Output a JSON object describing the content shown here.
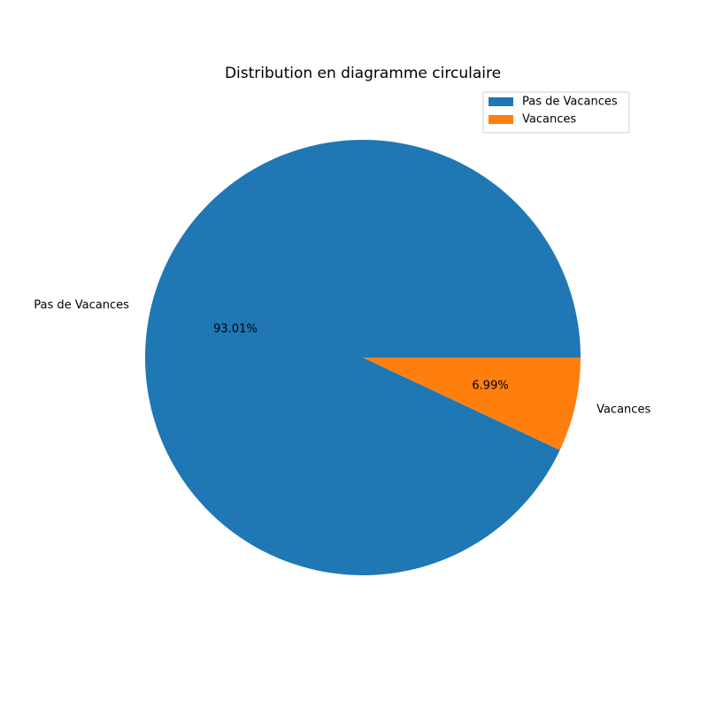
{
  "chart_data": {
    "type": "pie",
    "title": "Distribution en diagramme circulaire",
    "categories": [
      "Pas de Vacances",
      "Vacances"
    ],
    "values": [
      93.01,
      6.99
    ],
    "value_labels": [
      "93.01%",
      "6.99%"
    ],
    "colors": [
      "#1f77b4",
      "#ff7f0e"
    ],
    "start_angle_deg": 0,
    "direction": "counterclockwise",
    "legend": {
      "position": "upper-right",
      "entries": [
        "Pas de Vacances",
        "Vacances"
      ]
    }
  }
}
